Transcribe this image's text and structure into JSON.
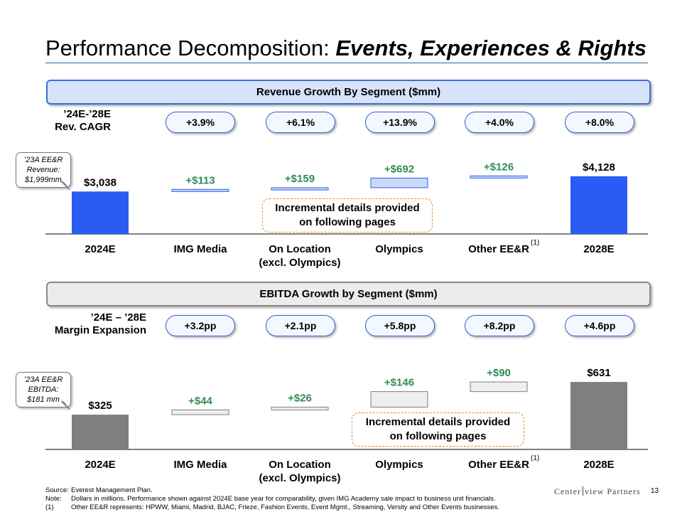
{
  "page": {
    "title_plain": "Performance Decomposition: ",
    "title_emphasis": "Events, Experiences & Rights",
    "page_number": "13",
    "logo_part1": "Center",
    "logo_part2": "view Partners"
  },
  "revenue": {
    "banner": "Revenue Growth By Segment ($mm)",
    "cagr_label_line1": "’24E-’28E",
    "cagr_label_line2": "Rev. CAGR",
    "cagr_pills": [
      "+3.9%",
      "+6.1%",
      "+13.9%",
      "+4.0%",
      "+8.0%"
    ],
    "callout_line1": "’23A EE&R",
    "callout_line2": "Revenue:",
    "callout_line3": "$1,999mm",
    "incremental_line1": "Incremental details provided",
    "incremental_line2": "on following pages"
  },
  "ebitda": {
    "banner": "EBITDA Growth by Segment ($mm)",
    "margin_label_line1": "’24E – ’28E",
    "margin_label_line2": "Margin Expansion",
    "margin_pills": [
      "+3.2pp",
      "+2.1pp",
      "+5.8pp",
      "+8.2pp",
      "+4.6pp"
    ],
    "callout_line1": "’23A EE&R",
    "callout_line2": "EBITDA:",
    "callout_line3": "$181 mm",
    "incremental_line1": "Incremental details provided",
    "incremental_line2": "on following pages"
  },
  "footnotes": {
    "source_key": "Source:",
    "source_text": "Everest Management Plan.",
    "note_key": "Note:",
    "note_text": "Dollars in millions. Performance shown against 2024E base year for comparability, given IMG Academy sale impact to business unit financials.",
    "fn1_key": "(1)",
    "fn1_text": "Other EE&R represents: HPWW, Miami, Madrid, BJAC, Frieze, Fashion Events, Event Mgmt., Streaming, Versity and Other Events businesses."
  },
  "chart_data": [
    {
      "type": "bar",
      "subtype": "waterfall",
      "title": "Revenue Growth By Segment ($mm)",
      "categories": [
        "2024E",
        "IMG Media",
        "On Location (excl. Olympics)",
        "Olympics",
        "Other EE&R",
        "2028E"
      ],
      "category_lines": [
        [
          "2024E"
        ],
        [
          "IMG Media"
        ],
        [
          "On Location",
          "(excl. Olympics)"
        ],
        [
          "Olympics"
        ],
        [
          "Other EE&R"
        ],
        [
          "2028E"
        ]
      ],
      "footnote_marks": [
        "",
        "",
        "",
        "",
        "(1)",
        ""
      ],
      "values": [
        3038,
        113,
        159,
        692,
        126,
        4128
      ],
      "kinds": [
        "total",
        "increment",
        "increment",
        "increment",
        "increment",
        "total"
      ],
      "data_labels": [
        "$3,038",
        "+$113",
        "+$159",
        "+$692",
        "+$126",
        "$4,128"
      ],
      "colors": {
        "total": "#2a5cf5",
        "increment_fill": "#ccd9f7",
        "increment_stroke": "#2a5cf5",
        "increment_label": "#2e8b57"
      }
    },
    {
      "type": "bar",
      "subtype": "waterfall",
      "title": "EBITDA Growth by Segment ($mm)",
      "categories": [
        "2024E",
        "IMG Media",
        "On Location (excl. Olympics)",
        "Olympics",
        "Other EE&R",
        "2028E"
      ],
      "category_lines": [
        [
          "2024E"
        ],
        [
          "IMG Media"
        ],
        [
          "On Location",
          "(excl. Olympics)"
        ],
        [
          "Olympics"
        ],
        [
          "Other EE&R"
        ],
        [
          "2028E"
        ]
      ],
      "footnote_marks": [
        "",
        "",
        "",
        "",
        "(1)",
        ""
      ],
      "values": [
        325,
        44,
        26,
        146,
        90,
        631
      ],
      "kinds": [
        "total",
        "increment",
        "increment",
        "increment",
        "increment",
        "total"
      ],
      "data_labels": [
        "$325",
        "+$44",
        "+$26",
        "+$146",
        "+$90",
        "$631"
      ],
      "colors": {
        "total": "#7f7f7f",
        "increment_fill": "#eeeeee",
        "increment_stroke": "#7f7f7f",
        "increment_label": "#2e8b57"
      }
    }
  ]
}
